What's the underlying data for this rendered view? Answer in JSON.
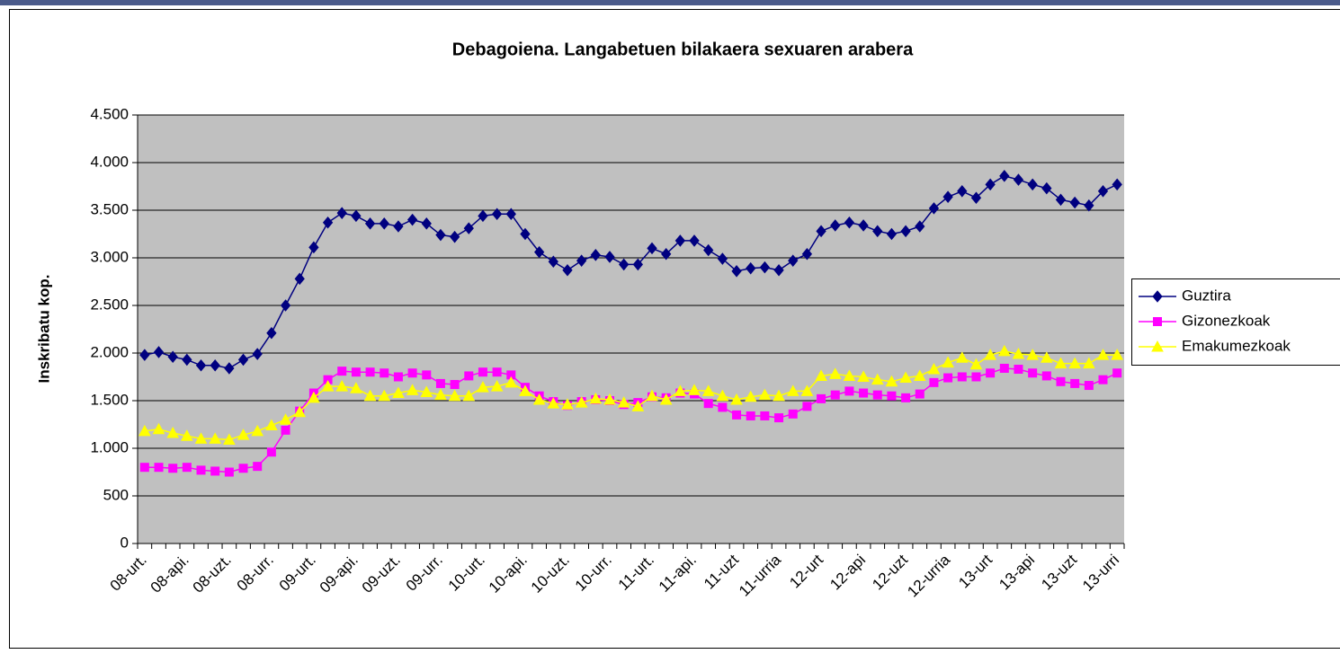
{
  "chart_data": {
    "type": "line",
    "title": "Debagoiena. Langabetuen bilakaera sexuaren arabera",
    "y_label": "Inskribatu kop.",
    "categories": [
      "08-urt.",
      null,
      null,
      "08-api.",
      null,
      null,
      "08-uzt.",
      null,
      null,
      "08-urr.",
      null,
      null,
      "09-urt.",
      null,
      null,
      "09-api.",
      null,
      null,
      "09-uzt.",
      null,
      null,
      "09-urr.",
      null,
      null,
      "10-urt.",
      null,
      null,
      "10-api.",
      null,
      null,
      "10-uzt.",
      null,
      null,
      "10-urr.",
      null,
      null,
      "11-urt.",
      null,
      null,
      "11-api.",
      null,
      null,
      "11-uzt",
      null,
      null,
      "11-urria",
      null,
      null,
      "12-urt",
      null,
      null,
      "12-api",
      null,
      null,
      "12-uzt",
      null,
      null,
      "12-urria",
      null,
      null,
      "13-urt",
      null,
      null,
      "13-api",
      null,
      null,
      "13-uzt",
      null,
      null,
      "13-urri"
    ],
    "series": [
      {
        "name": "Guztira",
        "color": "#000080",
        "marker": "diamond",
        "values": [
          1980,
          2010,
          1960,
          1930,
          1870,
          1870,
          1840,
          1930,
          1990,
          2210,
          2500,
          2780,
          3110,
          3370,
          3470,
          3440,
          3360,
          3360,
          3330,
          3400,
          3360,
          3240,
          3220,
          3310,
          3440,
          3460,
          3460,
          3250,
          3060,
          2960,
          2870,
          2970,
          3030,
          3010,
          2930,
          2930,
          3100,
          3040,
          3180,
          3180,
          3080,
          2990,
          2860,
          2890,
          2900,
          2870,
          2970,
          3040,
          3280,
          3340,
          3370,
          3340,
          3280,
          3250,
          3280,
          3330,
          3520,
          3640,
          3700,
          3630,
          3770,
          3860,
          3820,
          3770,
          3730,
          3610,
          3580,
          3550,
          3700,
          3770
        ]
      },
      {
        "name": "Gizonezkoak",
        "color": "#FF00FF",
        "marker": "square",
        "values": [
          800,
          800,
          790,
          800,
          770,
          760,
          750,
          790,
          810,
          960,
          1190,
          1390,
          1580,
          1720,
          1810,
          1800,
          1800,
          1790,
          1750,
          1790,
          1770,
          1680,
          1670,
          1760,
          1800,
          1800,
          1770,
          1640,
          1550,
          1490,
          1450,
          1490,
          1510,
          1500,
          1460,
          1480,
          1540,
          1530,
          1580,
          1570,
          1470,
          1430,
          1350,
          1340,
          1340,
          1320,
          1360,
          1440,
          1520,
          1560,
          1600,
          1580,
          1560,
          1550,
          1530,
          1570,
          1690,
          1740,
          1750,
          1750,
          1790,
          1840,
          1830,
          1790,
          1760,
          1700,
          1680,
          1660,
          1720,
          1790
        ]
      },
      {
        "name": "Emakumezkoak",
        "color": "#FFFF00",
        "marker": "triangle",
        "values": [
          1180,
          1200,
          1160,
          1130,
          1100,
          1100,
          1090,
          1140,
          1180,
          1240,
          1300,
          1380,
          1530,
          1650,
          1650,
          1630,
          1550,
          1550,
          1580,
          1610,
          1590,
          1560,
          1550,
          1550,
          1640,
          1650,
          1690,
          1600,
          1510,
          1470,
          1460,
          1480,
          1520,
          1510,
          1480,
          1440,
          1550,
          1510,
          1600,
          1610,
          1600,
          1550,
          1510,
          1540,
          1560,
          1550,
          1600,
          1600,
          1760,
          1780,
          1760,
          1750,
          1720,
          1700,
          1740,
          1760,
          1830,
          1900,
          1950,
          1880,
          1980,
          2020,
          1990,
          1980,
          1950,
          1890,
          1890,
          1890,
          1980,
          1980
        ]
      }
    ],
    "ylim": [
      0,
      4500
    ],
    "yticks": [
      0,
      500,
      {
        "value": 1000,
        "label": "1.000"
      },
      {
        "value": 1500,
        "label": "1.500"
      },
      {
        "value": 2000,
        "label": "2.000"
      },
      {
        "value": 2500,
        "label": "2.500"
      },
      {
        "value": 3000,
        "label": "3.000"
      },
      {
        "value": 3500,
        "label": "3.500"
      },
      {
        "value": 4000,
        "label": "4.000"
      },
      {
        "value": 4500,
        "label": "4.500"
      }
    ],
    "grid": true,
    "plot_background": "#C0C0C0",
    "legend": "right"
  }
}
